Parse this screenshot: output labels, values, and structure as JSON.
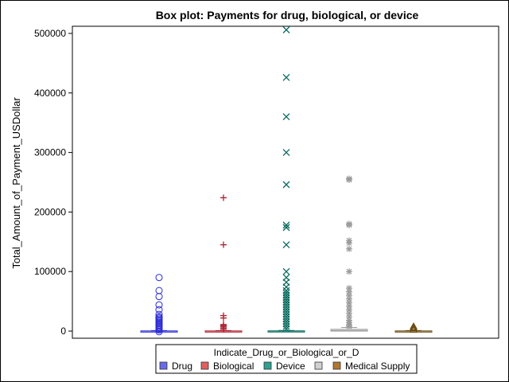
{
  "chart_data": {
    "type": "box",
    "title": "Box plot: Payments for drug, biological, or device",
    "ylabel": "Total_Amount_of_Payment_USDollar",
    "xlabel": "",
    "ylim": [
      -12000,
      512000
    ],
    "yticks": [
      0,
      100000,
      200000,
      300000,
      400000,
      500000
    ],
    "ytick_labels": [
      "0",
      "100000",
      "200000",
      "300000",
      "400000",
      "500000"
    ],
    "grid": false,
    "legend": {
      "title": "Indicate_Drug_or_Biological_or_D",
      "placement": "bottom"
    },
    "series": [
      {
        "name": "Drug",
        "color": "#2b2bd4",
        "swatch": "#6a6ae8",
        "marker": "circle",
        "box": {
          "q1": 0,
          "median": 100,
          "q3": 300,
          "whisker_low": 0,
          "whisker_high": 800
        },
        "outliers": [
          90000,
          68000,
          58000,
          44000,
          36000,
          28000,
          24000,
          22000,
          20000,
          18000,
          16000,
          14000,
          12000,
          10000,
          8000,
          6000,
          4000,
          2000,
          -1000
        ]
      },
      {
        "name": "Biological",
        "color": "#b02030",
        "swatch": "#e06060",
        "marker": "plus",
        "box": {
          "q1": 0,
          "median": 100,
          "q3": 300,
          "whisker_low": 0,
          "whisker_high": 800
        },
        "outliers": [
          224000,
          145000,
          26000,
          22000,
          11000,
          9000,
          7000,
          5000,
          3000
        ]
      },
      {
        "name": "Device",
        "color": "#0b6b5f",
        "swatch": "#30a090",
        "marker": "x",
        "box": {
          "q1": 0,
          "median": 100,
          "q3": 400,
          "whisker_low": 0,
          "whisker_high": 1000
        },
        "outliers": [
          506000,
          426000,
          360000,
          300000,
          246000,
          178000,
          174000,
          145000,
          100000,
          90000,
          82000,
          74000,
          68000,
          64000,
          60000,
          56000,
          52000,
          48000,
          44000,
          40000,
          36000,
          32000,
          28000,
          24000,
          20000,
          16000,
          12000,
          8000,
          4000
        ]
      },
      {
        "name": "",
        "color": "#9a9a9a",
        "swatch": "#d0d0d0",
        "marker": "star",
        "box": {
          "q1": 0,
          "median": 1000,
          "q3": 3000,
          "whisker_low": 0,
          "whisker_high": 6000
        },
        "outliers": [
          256000,
          254000,
          180000,
          178000,
          152000,
          148000,
          138000,
          100000,
          72000,
          66000,
          60000,
          54000,
          48000,
          42000,
          36000,
          30000,
          24000,
          18000,
          14000,
          10000,
          8000
        ]
      },
      {
        "name": "Medical Supply",
        "color": "#6b4a10",
        "swatch": "#b07830",
        "marker": "triangle",
        "box": {
          "q1": 0,
          "median": 100,
          "q3": 300,
          "whisker_low": 0,
          "whisker_high": 800
        },
        "outliers": [
          8000,
          6000,
          4000,
          2000
        ]
      }
    ]
  }
}
